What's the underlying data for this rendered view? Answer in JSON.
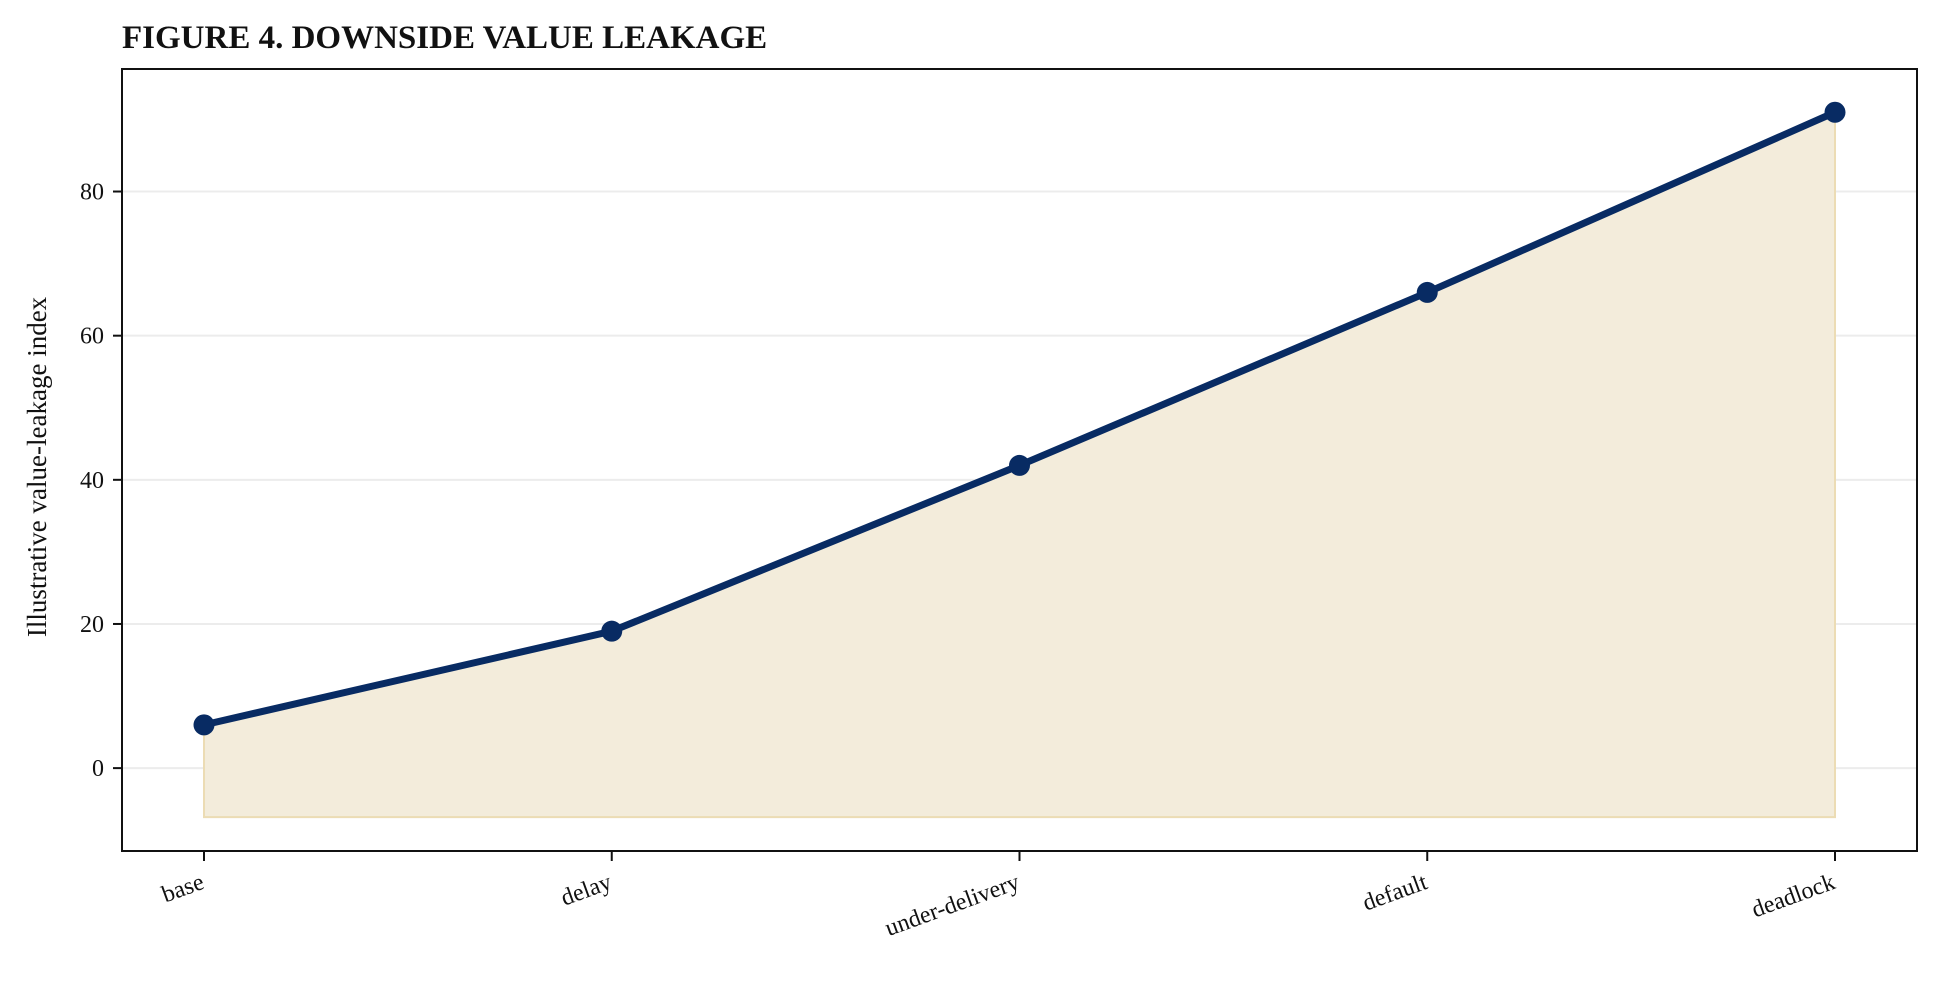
{
  "chart_data": {
    "type": "area",
    "title": "FIGURE 4. DOWNSIDE VALUE LEAKAGE",
    "xlabel": "",
    "ylabel": "Illustrative value-leakage index",
    "categories": [
      "base",
      "delay",
      "under-delivery",
      "default",
      "deadlock"
    ],
    "series": [
      {
        "values": [
          6,
          19,
          42,
          66,
          91
        ]
      }
    ],
    "fill_baseline": -6.8,
    "ylim": [
      -11.5,
      97
    ],
    "yticks": [
      0,
      20,
      40,
      60,
      80
    ],
    "grid": "horizontal",
    "legend": "none",
    "colors": {
      "line": "#082b63",
      "fill": "#f3ecdb",
      "fill_edge": "#ecdcb4",
      "grid": "#ececec",
      "axis": "#111111"
    }
  }
}
